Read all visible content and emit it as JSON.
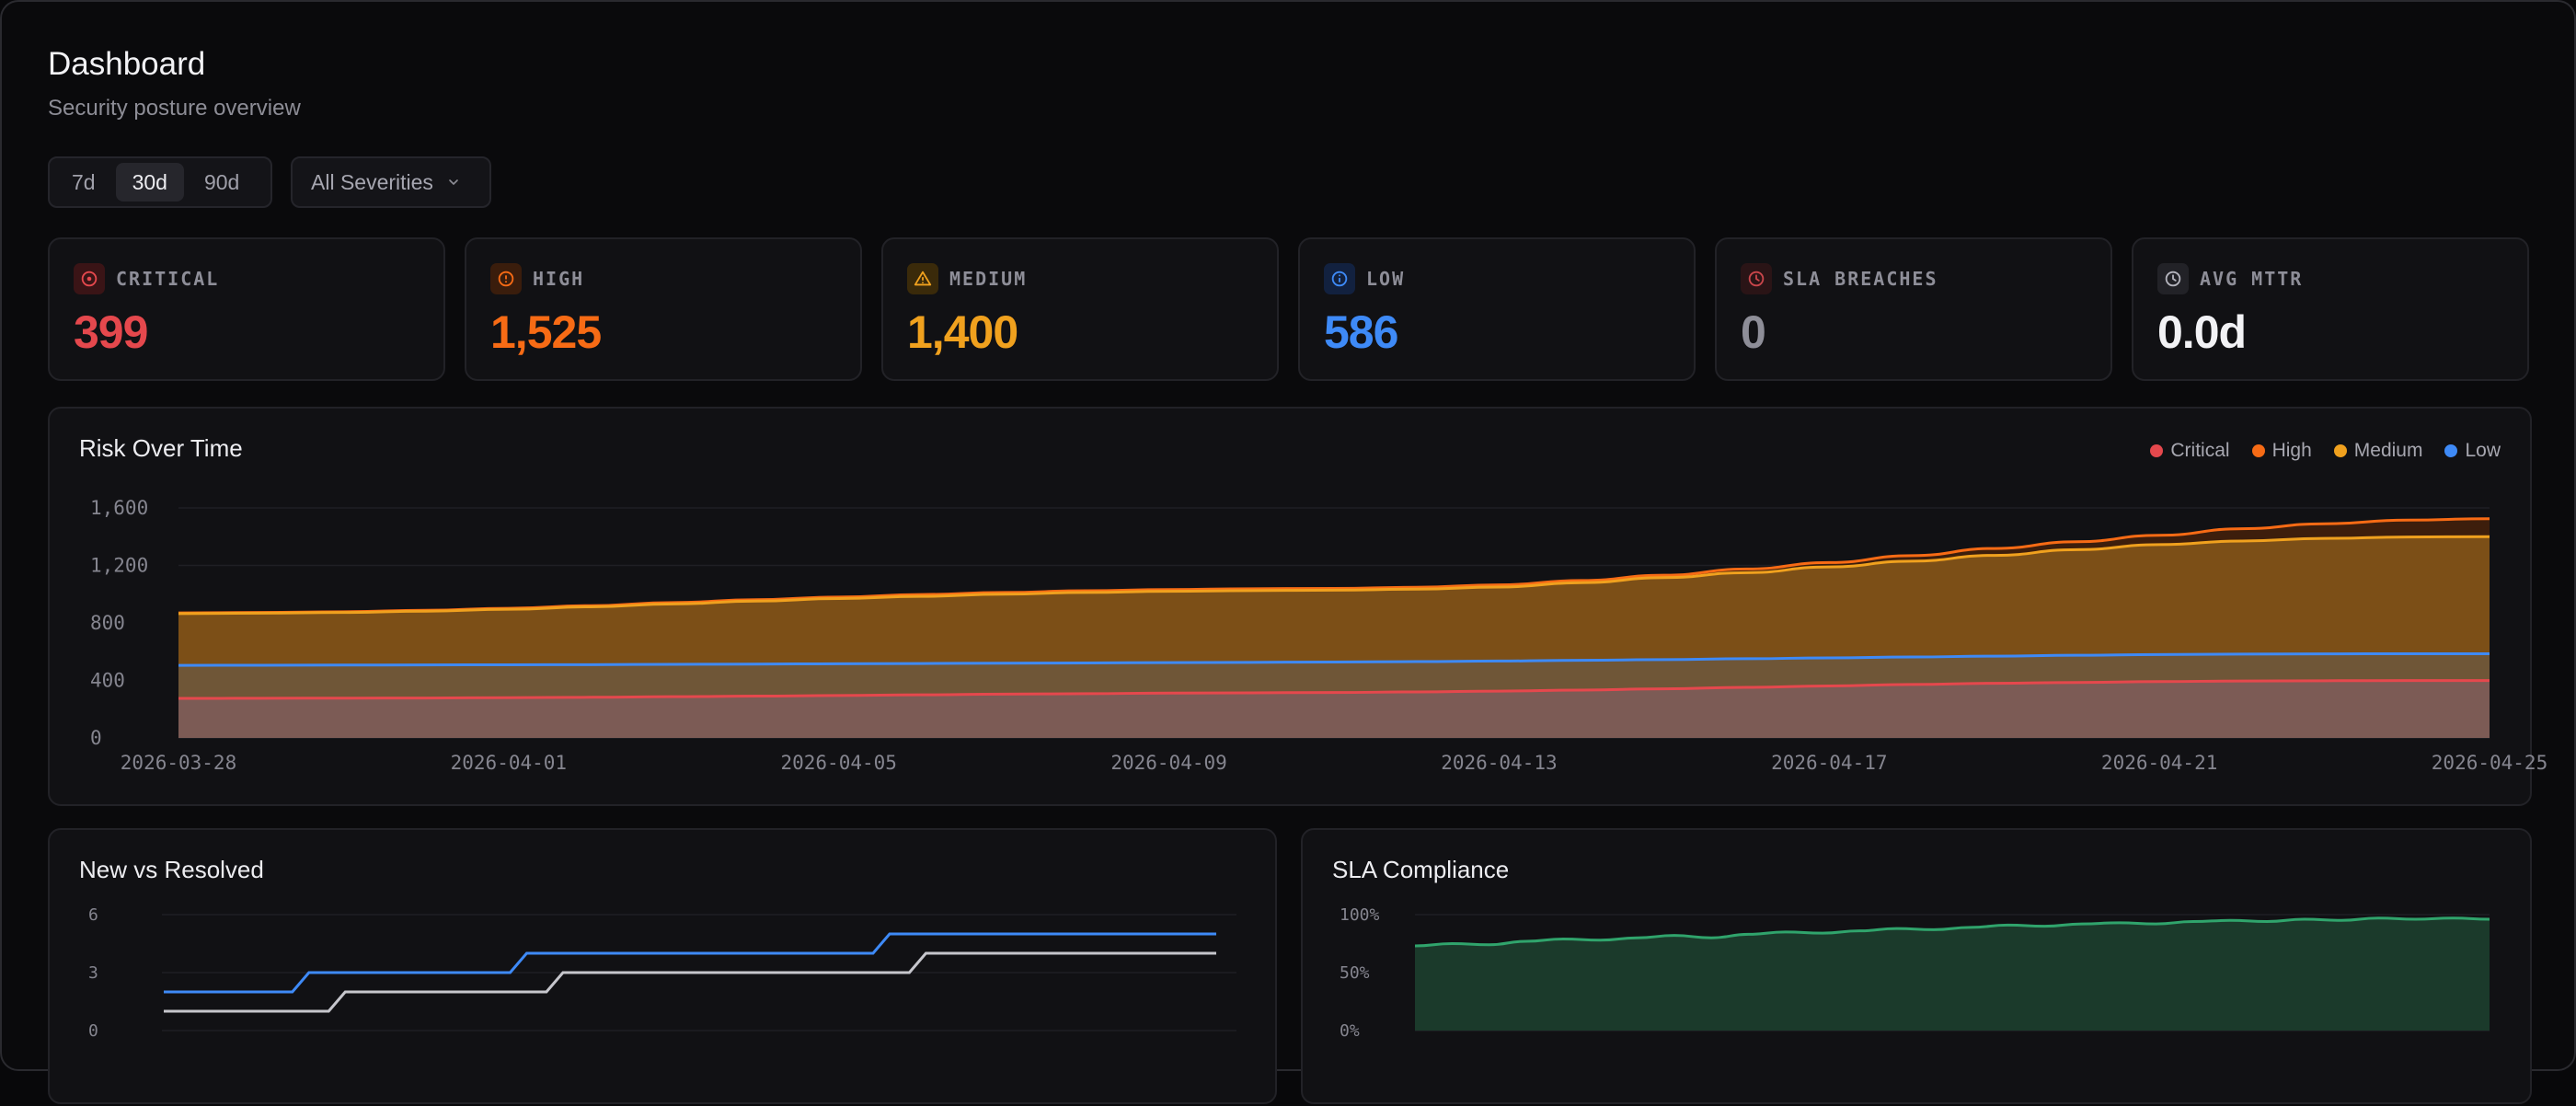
{
  "header": {
    "title": "Dashboard",
    "subtitle": "Security posture overview"
  },
  "filters": {
    "ranges": [
      {
        "label": "7d",
        "active": false
      },
      {
        "label": "30d",
        "active": true
      },
      {
        "label": "90d",
        "active": false
      }
    ],
    "severity_select": "All Severities"
  },
  "stats": [
    {
      "key": "critical",
      "label": "CRITICAL",
      "value": "399",
      "color": "#e5484d",
      "icon": "target-icon"
    },
    {
      "key": "high",
      "label": "HIGH",
      "value": "1,525",
      "color": "#f76b15",
      "icon": "alert-circle-icon"
    },
    {
      "key": "medium",
      "label": "MEDIUM",
      "value": "1,400",
      "color": "#f0a11e",
      "icon": "warning-triangle-icon"
    },
    {
      "key": "low",
      "label": "LOW",
      "value": "586",
      "color": "#3e8af7",
      "icon": "info-circle-icon"
    },
    {
      "key": "sla",
      "label": "SLA BREACHES",
      "value": "0",
      "color": "#8e8e98",
      "icon": "clock-icon"
    },
    {
      "key": "mttr",
      "label": "AVG MTTR",
      "value": "0.0d",
      "color": "#f2f2f5",
      "icon": "clock-icon"
    }
  ],
  "colors": {
    "critical": "#e5484d",
    "high": "#f76b15",
    "medium": "#f0a11e",
    "low": "#3e8af7",
    "sla": "#30a46c",
    "resolved": "#c6c6cc"
  },
  "risk_panel": {
    "title": "Risk Over Time",
    "legend": [
      "Critical",
      "High",
      "Medium",
      "Low"
    ]
  },
  "new_resolved_panel": {
    "title": "New vs Resolved"
  },
  "sla_panel": {
    "title": "SLA Compliance"
  },
  "chart_data": [
    {
      "type": "area",
      "title": "Risk Over Time",
      "x": [
        "2026-03-28",
        "2026-03-29",
        "2026-03-30",
        "2026-03-31",
        "2026-04-01",
        "2026-04-02",
        "2026-04-03",
        "2026-04-04",
        "2026-04-05",
        "2026-04-06",
        "2026-04-07",
        "2026-04-08",
        "2026-04-09",
        "2026-04-10",
        "2026-04-11",
        "2026-04-12",
        "2026-04-13",
        "2026-04-14",
        "2026-04-15",
        "2026-04-16",
        "2026-04-17",
        "2026-04-18",
        "2026-04-19",
        "2026-04-20",
        "2026-04-21",
        "2026-04-22",
        "2026-04-23",
        "2026-04-24",
        "2026-04-25"
      ],
      "xticks": [
        "2026-03-28",
        "2026-04-01",
        "2026-04-05",
        "2026-04-09",
        "2026-04-13",
        "2026-04-17",
        "2026-04-21",
        "2026-04-25"
      ],
      "yticks": [
        "0",
        "400",
        "800",
        "1,200",
        "1,600"
      ],
      "ylim": [
        0,
        1600
      ],
      "series": [
        {
          "name": "Critical",
          "values": [
            275,
            276,
            277,
            278,
            280,
            283,
            287,
            291,
            295,
            300,
            305,
            308,
            312,
            314,
            316,
            320,
            326,
            333,
            342,
            352,
            362,
            372,
            380,
            386,
            392,
            396,
            398,
            399,
            399
          ]
        },
        {
          "name": "Low",
          "values": [
            505,
            506,
            507,
            508,
            509,
            510,
            512,
            514,
            516,
            518,
            520,
            522,
            524,
            526,
            528,
            531,
            535,
            540,
            545,
            551,
            557,
            563,
            569,
            575,
            580,
            583,
            585,
            586,
            586
          ]
        },
        {
          "name": "Medium",
          "values": [
            865,
            868,
            873,
            882,
            895,
            912,
            932,
            952,
            970,
            985,
            1000,
            1012,
            1020,
            1025,
            1028,
            1035,
            1050,
            1080,
            1115,
            1150,
            1190,
            1230,
            1270,
            1310,
            1345,
            1370,
            1388,
            1398,
            1400
          ]
        },
        {
          "name": "High",
          "values": [
            870,
            873,
            878,
            888,
            902,
            920,
            942,
            962,
            980,
            998,
            1012,
            1024,
            1032,
            1038,
            1040,
            1048,
            1065,
            1095,
            1132,
            1175,
            1220,
            1268,
            1318,
            1365,
            1410,
            1455,
            1490,
            1515,
            1525
          ]
        }
      ],
      "grid": true,
      "legend_position": "top-right"
    },
    {
      "type": "line",
      "title": "New vs Resolved",
      "yticks": [
        "0",
        "3",
        "6"
      ],
      "ylim": [
        0,
        6
      ],
      "series": [
        {
          "values": [
            2,
            2,
            2,
            2,
            3,
            3,
            3,
            3,
            3,
            3,
            4,
            4,
            4,
            4,
            4,
            4,
            4,
            4,
            4,
            4,
            5,
            5,
            5,
            5,
            5,
            5,
            5,
            5,
            5,
            5
          ]
        },
        {
          "values": [
            1,
            1,
            1,
            1,
            1,
            2,
            2,
            2,
            2,
            2,
            2,
            3,
            3,
            3,
            3,
            3,
            3,
            3,
            3,
            3,
            3,
            4,
            4,
            4,
            4,
            4,
            4,
            4,
            4,
            4
          ]
        }
      ],
      "grid": true
    },
    {
      "type": "area",
      "title": "SLA Compliance",
      "yticks": [
        "0%",
        "50%",
        "100%"
      ],
      "ylim": [
        0,
        100
      ],
      "series": [
        {
          "values": [
            73,
            75,
            74,
            77,
            79,
            78,
            80,
            82,
            80,
            83,
            85,
            84,
            86,
            88,
            87,
            89,
            91,
            90,
            92,
            93,
            92,
            94,
            95,
            94,
            96,
            95,
            97,
            96,
            97,
            96
          ]
        }
      ],
      "grid": true
    }
  ]
}
